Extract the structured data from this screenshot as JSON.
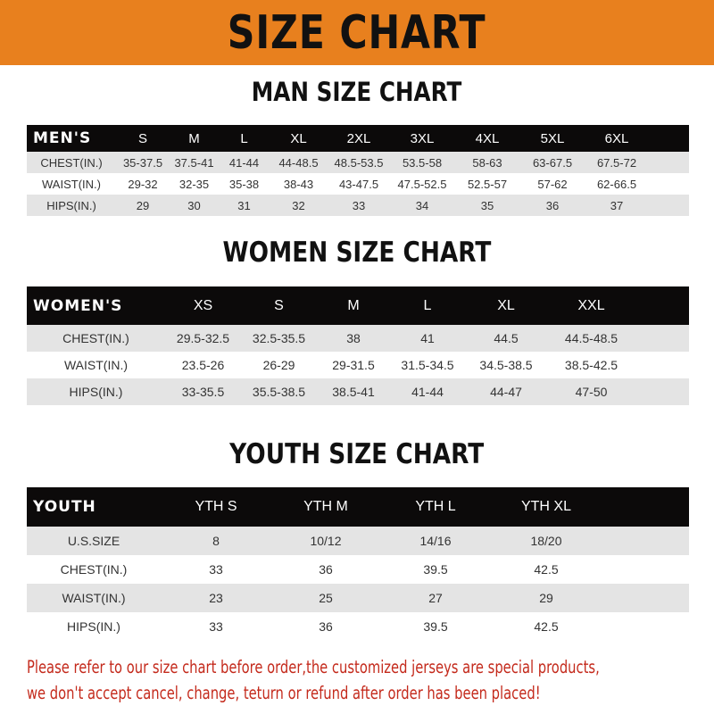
{
  "banner": {
    "title": "SIZE CHART",
    "color": "#e8801e"
  },
  "men": {
    "title": "MAN SIZE CHART",
    "header": [
      "MEN'S",
      "S",
      "M",
      "L",
      "XL",
      "2XL",
      "3XL",
      "4XL",
      "5XL",
      "6XL"
    ],
    "rows": [
      [
        "CHEST(IN.)",
        "35-37.5",
        "37.5-41",
        "41-44",
        "44-48.5",
        "48.5-53.5",
        "53.5-58",
        "58-63",
        "63-67.5",
        "67.5-72"
      ],
      [
        "WAIST(IN.)",
        "29-32",
        "32-35",
        "35-38",
        "38-43",
        "43-47.5",
        "47.5-52.5",
        "52.5-57",
        "57-62",
        "62-66.5"
      ],
      [
        "HIPS(IN.)",
        "29",
        "30",
        "31",
        "32",
        "33",
        "34",
        "35",
        "36",
        "37"
      ]
    ]
  },
  "women": {
    "title": "WOMEN SIZE CHART",
    "header": [
      "WOMEN'S",
      "XS",
      "S",
      "M",
      "L",
      "XL",
      "XXL"
    ],
    "rows": [
      [
        "CHEST(IN.)",
        "29.5-32.5",
        "32.5-35.5",
        "38",
        "41",
        "44.5",
        "44.5-48.5"
      ],
      [
        "WAIST(IN.)",
        "23.5-26",
        "26-29",
        "29-31.5",
        "31.5-34.5",
        "34.5-38.5",
        "38.5-42.5"
      ],
      [
        "HIPS(IN.)",
        "33-35.5",
        "35.5-38.5",
        "38.5-41",
        "41-44",
        "44-47",
        "47-50"
      ]
    ]
  },
  "youth": {
    "title": "YOUTH SIZE CHART",
    "header": [
      "YOUTH",
      "YTH S",
      "YTH M",
      "YTH L",
      "YTH XL"
    ],
    "rows": [
      [
        "U.S.SIZE",
        "8",
        "10/12",
        "14/16",
        "18/20"
      ],
      [
        "CHEST(IN.)",
        "33",
        "36",
        "39.5",
        "42.5"
      ],
      [
        "WAIST(IN.)",
        "23",
        "25",
        "27",
        "29"
      ],
      [
        "HIPS(IN.)",
        "33",
        "36",
        "39.5",
        "42.5"
      ]
    ]
  },
  "note": {
    "line1": "Please refer to our size chart before order,the customized jerseys are special products,",
    "line2": "we don't accept cancel, change, teturn or refund after order has been placed!",
    "color": "#c42a1c"
  }
}
